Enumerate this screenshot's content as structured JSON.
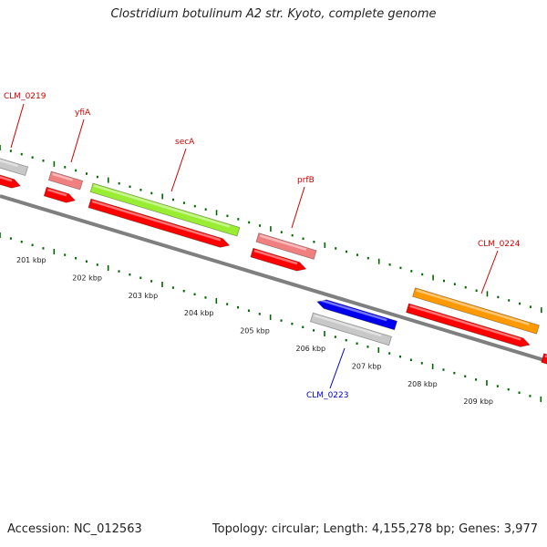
{
  "title": "Clostridium botulinum A2 str. Kyoto, complete genome",
  "footer": {
    "accession": "Accession: NC_012563",
    "summary": "Topology: circular; Length: 4,155,278 bp; Genes: 3,977"
  },
  "gene_labels": [
    {
      "name": "CLM_0219",
      "color": "#cc0000"
    },
    {
      "name": "yfiA",
      "color": "#cc0000"
    },
    {
      "name": "secA",
      "color": "#cc0000"
    },
    {
      "name": "prfB",
      "color": "#cc0000"
    },
    {
      "name": "CLM_0224",
      "color": "#cc0000"
    },
    {
      "name": "CLM_0223",
      "color": "#0000cc"
    }
  ],
  "scale_labels": [
    "201 kbp",
    "202 kbp",
    "203 kbp",
    "204 kbp",
    "205 kbp",
    "206 kbp",
    "207 kbp",
    "208 kbp",
    "209 kbp"
  ],
  "colors": {
    "backbone": "#7f7f7f",
    "cds": "#ff0000",
    "gray_feature": "#c8c8c8",
    "pink_feature": "#f08080",
    "green_feature": "#99ee33",
    "orange_feature": "#ff9900",
    "blue_feature": "#0000ee",
    "tick": "#006600"
  }
}
